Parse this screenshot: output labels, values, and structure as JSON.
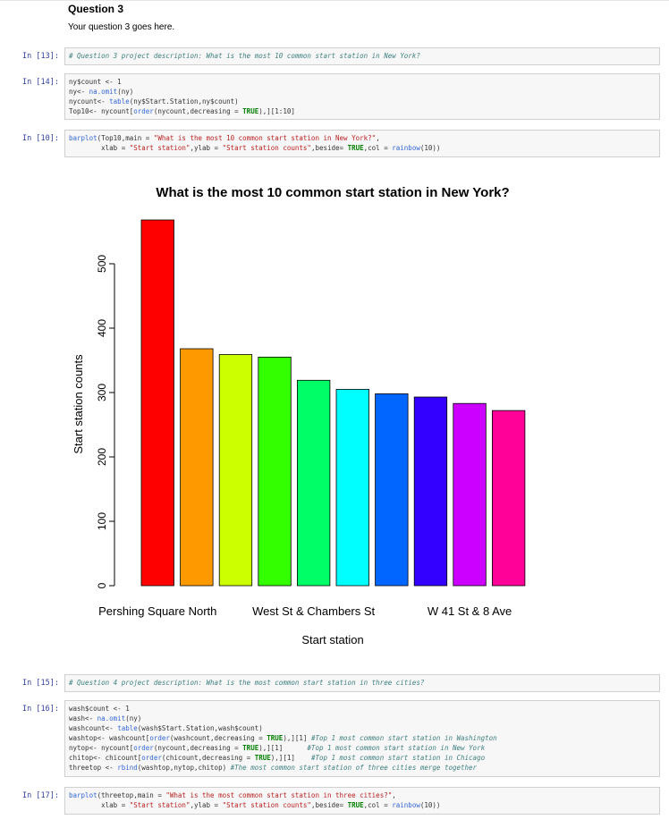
{
  "markdown": {
    "heading": "Question 3",
    "text": "Your question 3 goes here."
  },
  "cells": [
    {
      "prompt": "In [13]:",
      "lines": [
        [
          [
            "cm",
            "# Question 3 project description: What is the most 10 common start station in New York?"
          ]
        ]
      ]
    },
    {
      "prompt": "In [14]:",
      "lines": [
        [
          [
            "",
            "ny$count <- 1"
          ]
        ],
        [
          [
            "",
            "ny<- "
          ],
          [
            "fn",
            "na.omit"
          ],
          [
            "",
            "(ny)"
          ]
        ],
        [
          [
            "",
            "nycount<- "
          ],
          [
            "fn",
            "table"
          ],
          [
            "",
            "(ny$Start.Station,ny$count)"
          ]
        ],
        [
          [
            "",
            "Top10<- nycount["
          ],
          [
            "fn",
            "order"
          ],
          [
            "",
            "(nycount,decreasing = "
          ],
          [
            "kw",
            "TRUE"
          ],
          [
            "",
            "),][1:10]"
          ]
        ]
      ]
    },
    {
      "prompt": "In [10]:",
      "lines": [
        [
          [
            "fn",
            "barplot"
          ],
          [
            "",
            "(Top10,main = "
          ],
          [
            "st",
            "\"What is the most 10 common start station in New York?\""
          ],
          [
            "",
            ","
          ]
        ],
        [
          [
            "",
            "        xlab = "
          ],
          [
            "st",
            "\"Start station\""
          ],
          [
            "",
            ",ylab = "
          ],
          [
            "st",
            "\"Start station counts\""
          ],
          [
            "",
            ",beside= "
          ],
          [
            "kw",
            "TRUE"
          ],
          [
            "",
            ",col = "
          ],
          [
            "fn",
            "rainbow"
          ],
          [
            "",
            "(10))"
          ]
        ]
      ]
    },
    {
      "prompt": "In [15]:",
      "lines": [
        [
          [
            "cm",
            "# Question 4 project description: What is the most common start station in three cities?"
          ]
        ]
      ]
    },
    {
      "prompt": "In [16]:",
      "lines": [
        [
          [
            "",
            "wash$count <- 1"
          ]
        ],
        [
          [
            "",
            "wash<- "
          ],
          [
            "fn",
            "na.omit"
          ],
          [
            "",
            "(ny)"
          ]
        ],
        [
          [
            "",
            "washcount<- "
          ],
          [
            "fn",
            "table"
          ],
          [
            "",
            "(wash$Start.Station,wash$count)"
          ]
        ],
        [
          [
            "",
            "washtop<- washcount["
          ],
          [
            "fn",
            "order"
          ],
          [
            "",
            "(washcount,decreasing = "
          ],
          [
            "kw",
            "TRUE"
          ],
          [
            "",
            "),][1] "
          ],
          [
            "cm",
            "#Top 1 most common start station in Washington"
          ]
        ],
        [
          [
            "",
            "nytop<- nycount["
          ],
          [
            "fn",
            "order"
          ],
          [
            "",
            "(nycount,decreasing = "
          ],
          [
            "kw",
            "TRUE"
          ],
          [
            "",
            "),][1]      "
          ],
          [
            "cm",
            "#Top 1 most common start station in New York"
          ]
        ],
        [
          [
            "",
            "chitop<- chicount["
          ],
          [
            "fn",
            "order"
          ],
          [
            "",
            "(chicount,decreasing = "
          ],
          [
            "kw",
            "TRUE"
          ],
          [
            "",
            "),][1]    "
          ],
          [
            "cm",
            "#Top 1 most common start station in Chicago"
          ]
        ],
        [
          [
            "",
            "threetop <- "
          ],
          [
            "fn",
            "rbind"
          ],
          [
            "",
            "(washtop,nytop,chitop) "
          ],
          [
            "cm",
            "#The most common start station of three cities merge together"
          ]
        ]
      ]
    },
    {
      "prompt": "In [17]:",
      "lines": [
        [
          [
            "fn",
            "barplot"
          ],
          [
            "",
            "(threetop,main = "
          ],
          [
            "st",
            "\"What is the most common start station in three cities?\""
          ],
          [
            "",
            ","
          ]
        ],
        [
          [
            "",
            "        xlab = "
          ],
          [
            "st",
            "\"Start station\""
          ],
          [
            "",
            ",ylab = "
          ],
          [
            "st",
            "\"Start station counts\""
          ],
          [
            "",
            ",beside= "
          ],
          [
            "kw",
            "TRUE"
          ],
          [
            "",
            ",col = "
          ],
          [
            "fn",
            "rainbow"
          ],
          [
            "",
            "(10))"
          ]
        ]
      ]
    }
  ],
  "chart_data": {
    "type": "bar",
    "title": "What is the most 10 common start station in New York?",
    "xlabel": "Start station",
    "ylabel": "Start station counts",
    "values": [
      568,
      368,
      359,
      355,
      319,
      305,
      298,
      293,
      283,
      272
    ],
    "tick_labels": [
      {
        "index": 0,
        "label": "Pershing Square North"
      },
      {
        "index": 4,
        "label": "West St & Chambers St"
      },
      {
        "index": 8,
        "label": "W 41 St & 8 Ave"
      }
    ],
    "colors": [
      "#FF0000",
      "#FF9900",
      "#CCFF00",
      "#33FF00",
      "#00FF66",
      "#00FFFF",
      "#0066FF",
      "#3300FF",
      "#CC00FF",
      "#FF0099"
    ],
    "yticks": [
      0,
      100,
      200,
      300,
      400,
      500
    ],
    "ylim": [
      0,
      568
    ],
    "grid": false,
    "legend": "none"
  }
}
